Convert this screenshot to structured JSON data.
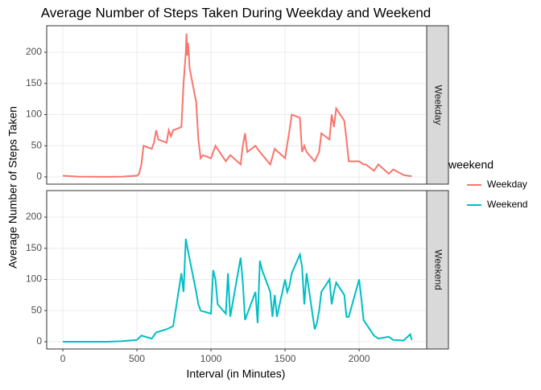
{
  "chart_data": {
    "type": "line",
    "title": "Average Number of Steps Taken During Weekday and Weekend",
    "x_label": "Interval (in Minutes)",
    "y_label": "Average Number of Steps Taken",
    "legend_title": "weekend",
    "xlim": [
      -109,
      2456
    ],
    "xticks": [
      0,
      500,
      1000,
      1500,
      2000
    ],
    "ylim": [
      -11.6,
      242.6
    ],
    "yticks": [
      0,
      50,
      100,
      150,
      200
    ],
    "grid": true,
    "series": [
      {
        "name": "Weekday",
        "color": "#F8766D",
        "x": [
          0,
          100,
          200,
          300,
          400,
          500,
          515,
          530,
          545,
          600,
          615,
          630,
          645,
          700,
          715,
          730,
          745,
          800,
          815,
          830,
          835,
          840,
          845,
          850,
          855,
          900,
          915,
          930,
          945,
          1000,
          1030,
          1100,
          1130,
          1200,
          1215,
          1230,
          1245,
          1300,
          1330,
          1400,
          1430,
          1500,
          1530,
          1545,
          1600,
          1615,
          1630,
          1645,
          1700,
          1730,
          1745,
          1800,
          1815,
          1830,
          1845,
          1900,
          1915,
          1930,
          2000,
          2030,
          2045,
          2100,
          2130,
          2200,
          2230,
          2300,
          2355
        ],
        "values": [
          2,
          0.5,
          0.3,
          0.2,
          0.5,
          2,
          5,
          20,
          50,
          45,
          55,
          75,
          60,
          55,
          75,
          65,
          75,
          80,
          150,
          200,
          230,
          195,
          215,
          200,
          175,
          120,
          60,
          30,
          35,
          30,
          50,
          25,
          35,
          20,
          50,
          70,
          40,
          50,
          40,
          20,
          45,
          30,
          75,
          100,
          95,
          40,
          50,
          40,
          25,
          40,
          70,
          60,
          100,
          80,
          110,
          90,
          60,
          25,
          25,
          20,
          20,
          10,
          20,
          5,
          12,
          3,
          1
        ]
      },
      {
        "name": "Weekend",
        "color": "#00BFC4",
        "x": [
          0,
          300,
          400,
          500,
          530,
          600,
          630,
          700,
          745,
          800,
          815,
          830,
          845,
          900,
          915,
          930,
          1000,
          1015,
          1030,
          1045,
          1100,
          1115,
          1130,
          1200,
          1215,
          1230,
          1300,
          1315,
          1330,
          1345,
          1400,
          1415,
          1430,
          1445,
          1500,
          1515,
          1530,
          1545,
          1600,
          1615,
          1630,
          1645,
          1700,
          1715,
          1730,
          1745,
          1800,
          1815,
          1830,
          1845,
          1900,
          1915,
          1930,
          2000,
          2015,
          2030,
          2100,
          2130,
          2200,
          2230,
          2300,
          2345,
          2355
        ],
        "values": [
          0,
          0,
          1,
          3,
          10,
          5,
          15,
          20,
          25,
          110,
          80,
          165,
          145,
          80,
          60,
          50,
          45,
          115,
          100,
          60,
          45,
          110,
          40,
          135,
          95,
          35,
          80,
          30,
          130,
          115,
          80,
          40,
          75,
          40,
          100,
          80,
          90,
          110,
          140,
          120,
          60,
          110,
          20,
          30,
          50,
          80,
          100,
          60,
          80,
          95,
          75,
          40,
          40,
          100,
          70,
          35,
          10,
          5,
          8,
          3,
          2,
          12,
          3
        ]
      }
    ]
  }
}
